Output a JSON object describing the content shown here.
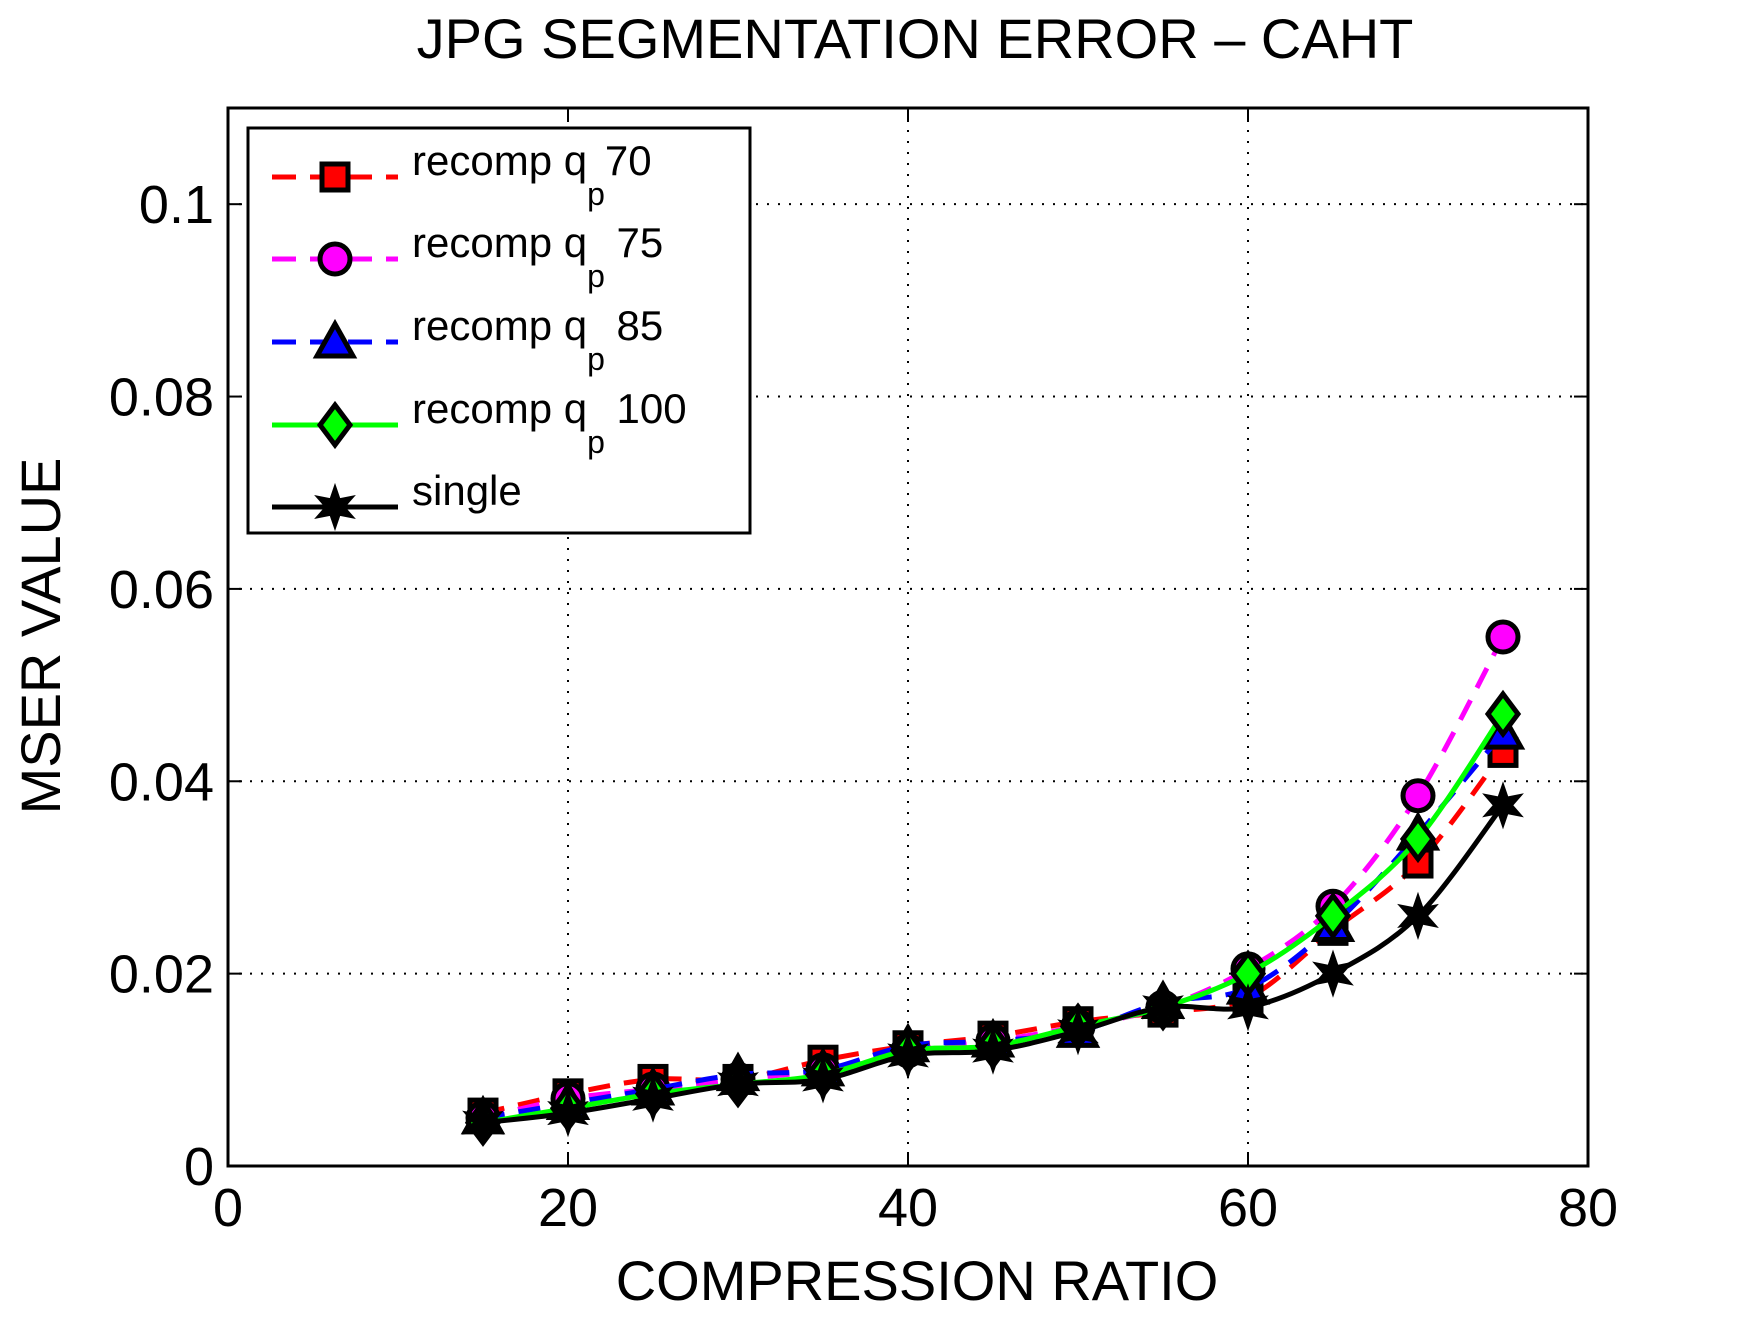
{
  "chart_data": {
    "type": "line",
    "title": "JPG SEGMENTATION ERROR – CAHT",
    "xlabel": "COMPRESSION RATIO",
    "ylabel": "MSER VALUE",
    "xlim": [
      0,
      80
    ],
    "ylim": [
      0,
      0.11
    ],
    "xticks": [
      0,
      20,
      40,
      60,
      80
    ],
    "xtick_labels": [
      "0",
      "20",
      "40",
      "60",
      "80"
    ],
    "yticks": [
      0,
      0.02,
      0.04,
      0.06,
      0.08,
      0.1
    ],
    "ytick_labels": [
      "0",
      "0.02",
      "0.04",
      "0.06",
      "0.08",
      "0.1"
    ],
    "grid": true,
    "legend_position": "top-left",
    "x": [
      15,
      20,
      25,
      30,
      35,
      40,
      45,
      50,
      55,
      60,
      65,
      70,
      75
    ],
    "series": [
      {
        "name": "recomp q_p70",
        "legend_main": "recomp q",
        "legend_sub": "p",
        "legend_tail": "70",
        "color": "#ff0000",
        "line_style": "dashed",
        "marker": "square",
        "values": [
          0.0055,
          0.0075,
          0.009,
          0.009,
          0.011,
          0.0125,
          0.0135,
          0.015,
          0.016,
          0.0175,
          0.0245,
          0.0315,
          0.043
        ]
      },
      {
        "name": "recomp q_p 75",
        "legend_main": "recomp q",
        "legend_sub": "p",
        "legend_tail": " 75",
        "color": "#ff00ff",
        "line_style": "dashed",
        "marker": "circle",
        "values": [
          0.005,
          0.007,
          0.008,
          0.009,
          0.01,
          0.012,
          0.013,
          0.0145,
          0.0165,
          0.0205,
          0.027,
          0.0385,
          0.055
        ]
      },
      {
        "name": "recomp q_p 85",
        "legend_main": "recomp q",
        "legend_sub": "p",
        "legend_tail": " 85",
        "color": "#0000ff",
        "line_style": "dashed",
        "marker": "triangle",
        "values": [
          0.005,
          0.0065,
          0.008,
          0.0095,
          0.01,
          0.0125,
          0.013,
          0.014,
          0.017,
          0.0185,
          0.025,
          0.0345,
          0.045
        ]
      },
      {
        "name": "recomp q_p 100",
        "legend_main": "recomp q",
        "legend_sub": "p",
        "legend_tail": " 100",
        "color": "#00ff00",
        "line_style": "solid",
        "marker": "diamond",
        "values": [
          0.0045,
          0.006,
          0.0075,
          0.0085,
          0.0095,
          0.012,
          0.0125,
          0.0145,
          0.0165,
          0.02,
          0.026,
          0.034,
          0.047
        ]
      },
      {
        "name": "single",
        "legend_main": "single",
        "legend_sub": "",
        "legend_tail": "",
        "color": "#000000",
        "line_style": "solid",
        "marker": "star",
        "values": [
          0.0045,
          0.0055,
          0.007,
          0.0085,
          0.009,
          0.0115,
          0.012,
          0.014,
          0.0165,
          0.0165,
          0.02,
          0.026,
          0.0375
        ]
      }
    ]
  }
}
